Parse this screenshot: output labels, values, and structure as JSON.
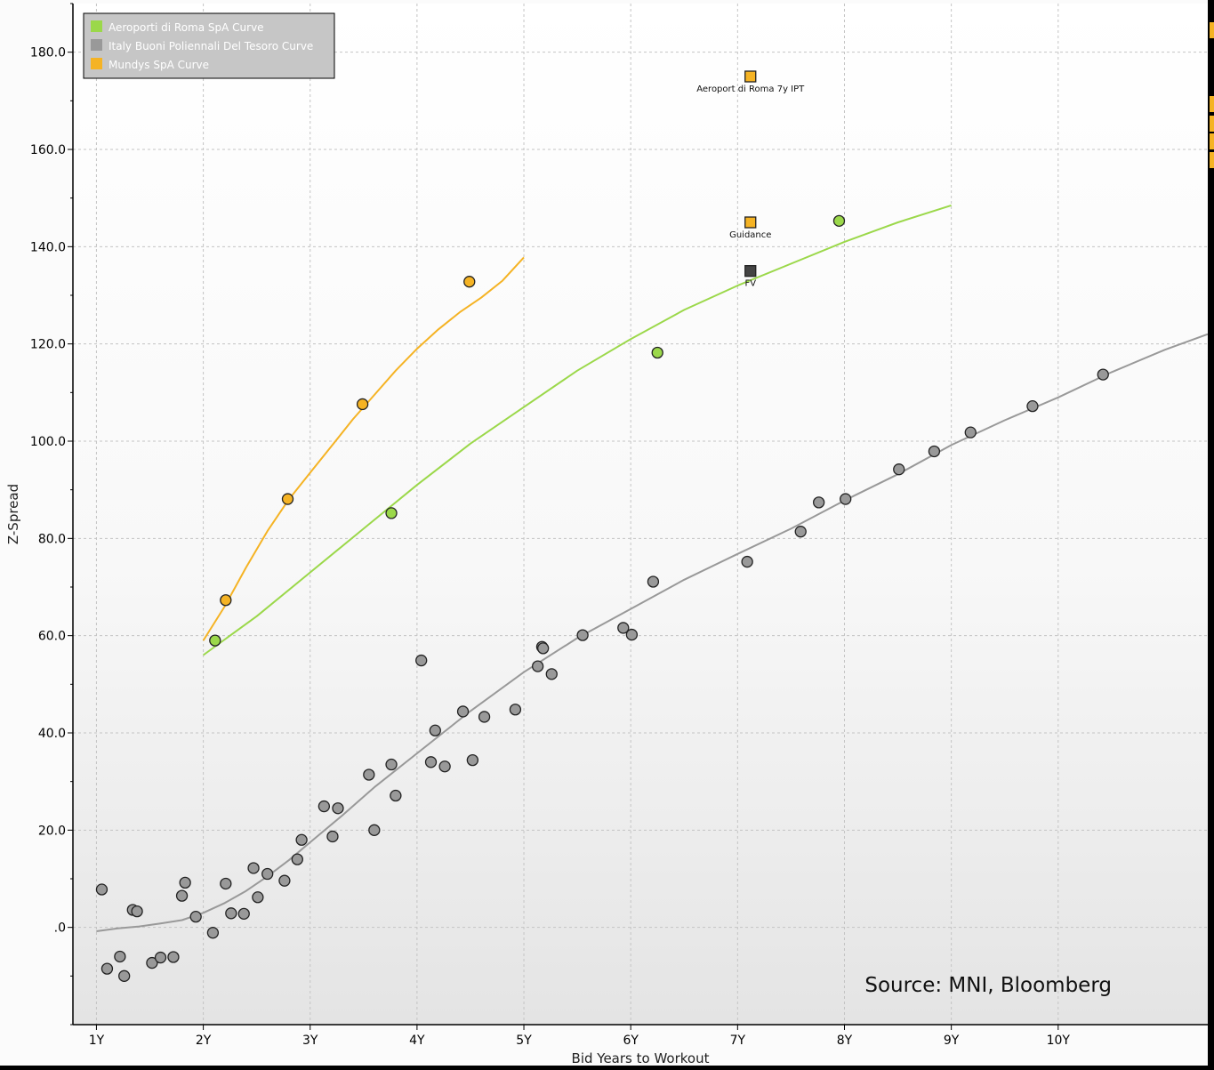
{
  "colors": {
    "aeroporti": "#9bd84a",
    "italy": "#999999",
    "mundys": "#f5b324",
    "fv_marker": "#444444",
    "frame": "#000000",
    "grid": "#c4c4c4"
  },
  "source_note": "Source: MNI, Bloomberg",
  "chart_data": {
    "type": "scatter",
    "xlabel": "Bid Years to Workout",
    "ylabel": "Z-Spread",
    "x_ticks": [
      1,
      2,
      3,
      4,
      5,
      6,
      7,
      8,
      9,
      10
    ],
    "x_tick_labels": [
      "1Y",
      "2Y",
      "3Y",
      "4Y",
      "5Y",
      "6Y",
      "7Y",
      "8Y",
      "9Y",
      "10Y"
    ],
    "y_ticks": [
      0,
      20,
      40,
      60,
      80,
      100,
      120,
      140,
      160,
      180
    ],
    "y_tick_labels": [
      ".0",
      "20.0",
      "40.0",
      "60.0",
      "80.0",
      "100.0",
      "120.0",
      "140.0",
      "160.0",
      "180.0"
    ],
    "xlim": [
      0.78,
      11.4
    ],
    "ylim": [
      -20,
      190
    ],
    "grid": true,
    "legend_position": "top-left",
    "legend": [
      {
        "label": "Aeroporti di Roma SpA Curve",
        "color": "#9bd84a"
      },
      {
        "label": "Italy Buoni Poliennali Del Tesoro Curve",
        "color": "#999999"
      },
      {
        "label": "Mundys SpA Curve",
        "color": "#f5b324"
      }
    ],
    "series": [
      {
        "name": "Aeroporti di Roma SpA Curve",
        "color": "#9bd84a",
        "points": [
          [
            2.11,
            59.0
          ],
          [
            3.76,
            85.2
          ],
          [
            6.25,
            118.2
          ],
          [
            7.95,
            145.3
          ]
        ],
        "curve": [
          [
            2.0,
            56.0
          ],
          [
            2.5,
            64.0
          ],
          [
            3.0,
            73.0
          ],
          [
            3.5,
            82.0
          ],
          [
            4.0,
            91.0
          ],
          [
            4.5,
            99.5
          ],
          [
            5.0,
            107.0
          ],
          [
            5.5,
            114.5
          ],
          [
            6.0,
            121.0
          ],
          [
            6.5,
            127.0
          ],
          [
            7.0,
            132.0
          ],
          [
            7.5,
            136.5
          ],
          [
            8.0,
            141.0
          ],
          [
            8.5,
            145.0
          ],
          [
            9.0,
            148.5
          ]
        ]
      },
      {
        "name": "Italy Buoni Poliennali Del Tesoro Curve",
        "color": "#999999",
        "points": [
          [
            1.05,
            7.8
          ],
          [
            1.1,
            -8.5
          ],
          [
            1.22,
            -6.0
          ],
          [
            1.26,
            -10.0
          ],
          [
            1.34,
            3.6
          ],
          [
            1.38,
            3.3
          ],
          [
            1.52,
            -7.3
          ],
          [
            1.6,
            -6.2
          ],
          [
            1.72,
            -6.1
          ],
          [
            1.8,
            6.5
          ],
          [
            1.83,
            9.2
          ],
          [
            1.93,
            2.2
          ],
          [
            2.09,
            -1.1
          ],
          [
            2.21,
            9.0
          ],
          [
            2.26,
            2.9
          ],
          [
            2.38,
            2.8
          ],
          [
            2.47,
            12.2
          ],
          [
            2.51,
            6.2
          ],
          [
            2.6,
            11.0
          ],
          [
            2.76,
            9.6
          ],
          [
            2.88,
            14.0
          ],
          [
            2.92,
            18.0
          ],
          [
            3.13,
            24.9
          ],
          [
            3.21,
            18.7
          ],
          [
            3.26,
            24.5
          ],
          [
            3.55,
            31.4
          ],
          [
            3.6,
            20.0
          ],
          [
            3.76,
            33.5
          ],
          [
            3.8,
            27.1
          ],
          [
            4.04,
            54.9
          ],
          [
            4.13,
            34.0
          ],
          [
            4.17,
            40.5
          ],
          [
            4.26,
            33.1
          ],
          [
            4.43,
            44.4
          ],
          [
            4.52,
            34.4
          ],
          [
            4.63,
            43.3
          ],
          [
            4.92,
            44.8
          ],
          [
            5.13,
            53.7
          ],
          [
            5.17,
            57.7
          ],
          [
            5.18,
            57.4
          ],
          [
            5.26,
            52.1
          ],
          [
            5.55,
            60.1
          ],
          [
            5.93,
            61.6
          ],
          [
            6.01,
            60.2
          ],
          [
            6.21,
            71.1
          ],
          [
            7.09,
            75.2
          ],
          [
            7.59,
            81.4
          ],
          [
            7.76,
            87.4
          ],
          [
            8.01,
            88.1
          ],
          [
            8.51,
            94.2
          ],
          [
            8.84,
            97.9
          ],
          [
            9.18,
            101.8
          ],
          [
            9.76,
            107.2
          ],
          [
            10.42,
            113.7
          ]
        ],
        "curve": [
          [
            1.0,
            -0.8
          ],
          [
            1.2,
            -0.2
          ],
          [
            1.4,
            0.2
          ],
          [
            1.6,
            0.8
          ],
          [
            1.8,
            1.5
          ],
          [
            2.0,
            3.0
          ],
          [
            2.2,
            5.0
          ],
          [
            2.4,
            7.5
          ],
          [
            2.6,
            10.5
          ],
          [
            2.8,
            13.8
          ],
          [
            3.0,
            17.5
          ],
          [
            3.3,
            23.0
          ],
          [
            3.6,
            28.8
          ],
          [
            4.0,
            35.8
          ],
          [
            4.5,
            44.5
          ],
          [
            5.0,
            52.5
          ],
          [
            5.5,
            59.5
          ],
          [
            6.0,
            65.5
          ],
          [
            6.5,
            71.5
          ],
          [
            7.0,
            76.8
          ],
          [
            7.5,
            82.0
          ],
          [
            8.0,
            87.8
          ],
          [
            8.5,
            93.2
          ],
          [
            9.0,
            99.2
          ],
          [
            9.5,
            104.3
          ],
          [
            10.0,
            109.0
          ],
          [
            10.5,
            114.2
          ],
          [
            11.0,
            118.8
          ],
          [
            11.4,
            122.0
          ]
        ]
      },
      {
        "name": "Mundys SpA Curve",
        "color": "#f5b324",
        "points": [
          [
            2.21,
            67.3
          ],
          [
            2.79,
            88.1
          ],
          [
            3.49,
            107.6
          ],
          [
            4.49,
            132.8
          ]
        ],
        "curve": [
          [
            2.0,
            59.0
          ],
          [
            2.2,
            66.0
          ],
          [
            2.4,
            74.0
          ],
          [
            2.6,
            81.5
          ],
          [
            2.8,
            88.0
          ],
          [
            3.0,
            93.5
          ],
          [
            3.2,
            99.0
          ],
          [
            3.4,
            104.5
          ],
          [
            3.6,
            109.5
          ],
          [
            3.8,
            114.5
          ],
          [
            4.0,
            119.0
          ],
          [
            4.2,
            123.0
          ],
          [
            4.4,
            126.5
          ],
          [
            4.6,
            129.5
          ],
          [
            4.8,
            133.0
          ],
          [
            5.0,
            137.8
          ]
        ]
      }
    ],
    "annotations": [
      {
        "label": "Aeroport di Roma 7y IPT",
        "x": 7.12,
        "y": 175.0,
        "color": "#f5b324"
      },
      {
        "label": "Guidance",
        "x": 7.12,
        "y": 145.0,
        "color": "#f5b324"
      },
      {
        "label": "FV",
        "x": 7.12,
        "y": 135.0,
        "color": "#444444"
      }
    ]
  }
}
